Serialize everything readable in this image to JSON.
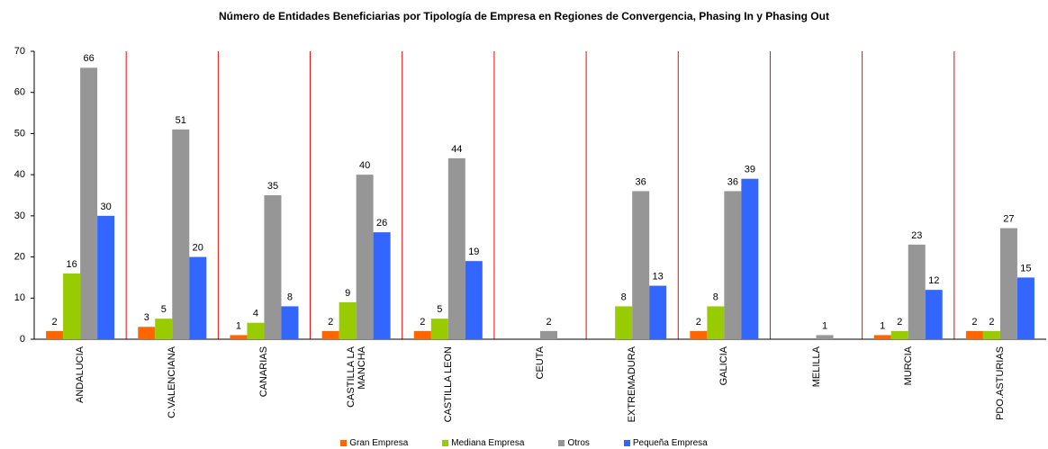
{
  "chart_data": {
    "type": "bar",
    "title": "Número de Entidades Beneficiarias por Tipología de Empresa en Regiones de Convergencia, Phasing In y Phasing Out",
    "categories": [
      "ANDALUCIA",
      "C.VALENCIANA",
      "CANARIAS",
      "CASTILLA LA MANCHA",
      "CASTILLA LEON",
      "CEUTA",
      "EXTREMADURA",
      "GALICIA",
      "MELILLA",
      "MURCIA",
      "PDO.ASTURIAS"
    ],
    "series": [
      {
        "name": "Gran Empresa",
        "color": "#ff6600",
        "values": [
          2,
          3,
          1,
          2,
          2,
          null,
          null,
          2,
          null,
          1,
          2
        ]
      },
      {
        "name": "Mediana Empresa",
        "color": "#99cc00",
        "values": [
          16,
          5,
          4,
          9,
          5,
          null,
          8,
          8,
          null,
          2,
          2
        ]
      },
      {
        "name": "Otros",
        "color": "#969696",
        "values": [
          66,
          51,
          35,
          40,
          44,
          2,
          36,
          36,
          1,
          23,
          27
        ]
      },
      {
        "name": "Pequeña Empresa",
        "color": "#3366ff",
        "values": [
          30,
          20,
          8,
          26,
          19,
          null,
          13,
          39,
          null,
          12,
          15
        ]
      }
    ],
    "ylim": [
      0,
      70
    ],
    "yticks": [
      0,
      10,
      20,
      30,
      40,
      50,
      60,
      70
    ],
    "grid": false,
    "legend": "bottom"
  }
}
